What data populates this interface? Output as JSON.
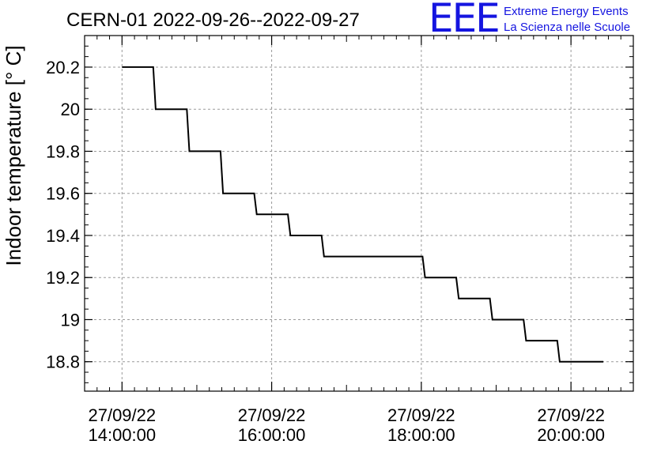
{
  "chart_data": {
    "type": "line",
    "title": "CERN-01 2022-09-26--2022-09-27",
    "ylabel": "Indoor temperature [° C]",
    "xlabel": "",
    "xlim": [
      "2022-09-27 13:30",
      "2022-09-27 20:50"
    ],
    "ylim": [
      18.66,
      20.35
    ],
    "grid": true,
    "step": true,
    "yticks": [
      18.8,
      19,
      19.2,
      19.4,
      19.6,
      19.8,
      20,
      20.2
    ],
    "ytick_labels": [
      "18.8",
      "19",
      "19.2",
      "19.4",
      "19.6",
      "19.8",
      "20",
      "20.2"
    ],
    "xticks": [
      {
        "date": "27/09/22",
        "time": "14:00:00",
        "value": "2022-09-27 14:00"
      },
      {
        "date": "27/09/22",
        "time": "16:00:00",
        "value": "2022-09-27 16:00"
      },
      {
        "date": "27/09/22",
        "time": "18:00:00",
        "value": "2022-09-27 18:00"
      },
      {
        "date": "27/09/22",
        "time": "20:00:00",
        "value": "2022-09-27 20:00"
      }
    ],
    "series": [
      {
        "color": "#000000",
        "x": [
          "2022-09-27 14:00",
          "2022-09-27 14:25",
          "2022-09-27 14:27",
          "2022-09-27 14:52",
          "2022-09-27 14:54",
          "2022-09-27 15:19",
          "2022-09-27 15:21",
          "2022-09-27 15:46",
          "2022-09-27 15:48",
          "2022-09-27 16:13",
          "2022-09-27 16:15",
          "2022-09-27 16:40",
          "2022-09-27 16:42",
          "2022-09-27 17:07",
          "2022-09-27 17:09",
          "2022-09-27 18:01",
          "2022-09-27 18:03",
          "2022-09-27 18:28",
          "2022-09-27 18:30",
          "2022-09-27 18:55",
          "2022-09-27 18:57",
          "2022-09-27 19:22",
          "2022-09-27 19:24",
          "2022-09-27 19:49",
          "2022-09-27 19:51",
          "2022-09-27 20:26"
        ],
        "y": [
          20.2,
          20.2,
          20.0,
          20.0,
          19.8,
          19.8,
          19.6,
          19.6,
          19.5,
          19.5,
          19.4,
          19.4,
          19.3,
          19.3,
          19.3,
          19.3,
          19.2,
          19.2,
          19.1,
          19.1,
          19.0,
          19.0,
          18.9,
          18.9,
          18.8,
          18.8
        ]
      }
    ]
  },
  "logo": {
    "mark": "EEE",
    "line1": "Extreme Energy Events",
    "line2": "La Scienza nelle Scuole"
  }
}
